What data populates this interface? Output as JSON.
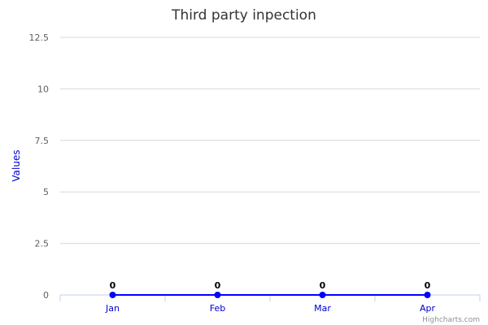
{
  "chart_data": {
    "type": "line",
    "title": "Third party inpection",
    "xlabel": "",
    "ylabel": "Values",
    "categories": [
      "Jan",
      "Feb",
      "Mar",
      "Apr"
    ],
    "series": [
      {
        "values": [
          0,
          0,
          0,
          0
        ]
      }
    ],
    "ylim": [
      0,
      12.5
    ],
    "yticks": [
      "0",
      "2.5",
      "5",
      "7.5",
      "10",
      "12.5"
    ],
    "data_labels": [
      "0",
      "0",
      "0",
      "0"
    ],
    "grid": true,
    "legend": "none",
    "colors": {
      "series": "#0000ff",
      "axis_label": "#0000cc",
      "tick_x": "#0000cc",
      "grid": "#d8d8d8",
      "axis_line": "#c0d0e0"
    }
  },
  "credits": "Highcharts.com"
}
